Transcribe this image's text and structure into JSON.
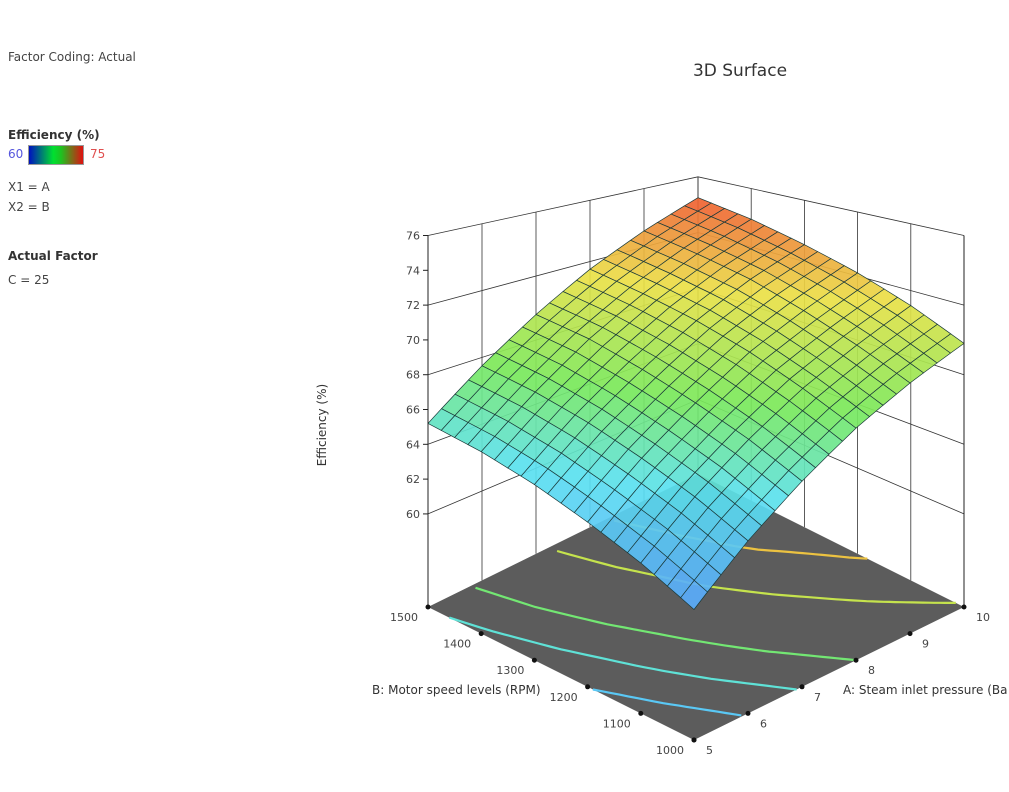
{
  "panel": {
    "factor_coding": "Factor Coding: Actual",
    "response_label": "Efficiency (%)",
    "legend_min": "60",
    "legend_max": "75",
    "x1": "X1 = A",
    "x2": "X2 = B",
    "actual_factor_heading": "Actual Factor",
    "actual_factor_value": "C = 25"
  },
  "chart_data": {
    "type": "surface",
    "title": "3D Surface",
    "xlabel": "A: Steam inlet pressure (Ba",
    "ylabel": "B: Motor speed levels (RPM)",
    "zlabel": "Efficiency (%)",
    "x_ticks": [
      "5",
      "6",
      "7",
      "8",
      "9",
      "10"
    ],
    "y_ticks": [
      "1000",
      "1100",
      "1200",
      "1300",
      "1400",
      "1500"
    ],
    "z_ticks": [
      "60",
      "62",
      "64",
      "66",
      "68",
      "70",
      "72",
      "74",
      "76"
    ],
    "xlim": [
      5,
      10
    ],
    "ylim": [
      1000,
      1500
    ],
    "zlim": [
      60,
      76
    ],
    "color_range": [
      60,
      75
    ],
    "colors": {
      "low": "#3050ff",
      "mid": "#30e040",
      "high": "#e82a1a",
      "floor": "#5c5c5c"
    },
    "surface_x": [
      5,
      6,
      7,
      8,
      9,
      10
    ],
    "surface_y": [
      1000,
      1100,
      1200,
      1300,
      1400,
      1500
    ],
    "surface_z": [
      [
        60.9,
        63.2,
        65.2,
        67.0,
        68.5,
        69.8
      ],
      [
        62.1,
        64.4,
        66.4,
        68.2,
        69.7,
        71.1
      ],
      [
        63.1,
        65.4,
        67.4,
        69.3,
        70.8,
        72.2
      ],
      [
        64.0,
        66.3,
        68.3,
        70.2,
        71.8,
        73.1
      ],
      [
        64.7,
        67.0,
        69.1,
        70.9,
        72.5,
        73.9
      ],
      [
        65.2,
        67.5,
        69.6,
        71.5,
        73.1,
        74.5
      ]
    ],
    "floor_contour_levels": [
      63,
      65,
      67,
      70,
      72
    ]
  }
}
